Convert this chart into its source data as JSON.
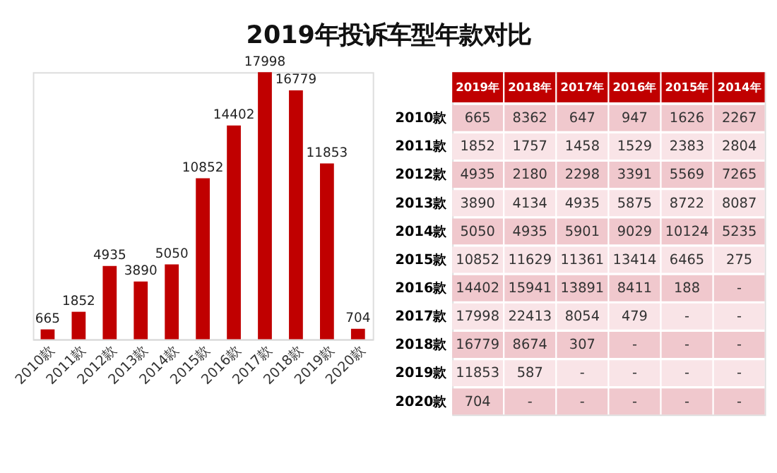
{
  "chart_data": [
    {
      "type": "bar",
      "title": "2019年投诉车型年款对比",
      "categories": [
        "2010款",
        "2011款",
        "2012款",
        "2013款",
        "2014款",
        "2015款",
        "2016款",
        "2017款",
        "2018款",
        "2019款",
        "2020款"
      ],
      "values": [
        665,
        1852,
        4935,
        3890,
        5050,
        10852,
        14402,
        17998,
        16779,
        11853,
        704
      ],
      "color": "#c00000",
      "data_labels": true,
      "grid": false,
      "legend": false
    },
    {
      "type": "heatmap",
      "categories": [
        "2019年",
        "2018年",
        "2017年",
        "2016年",
        "2015年",
        "2014年"
      ],
      "y_categories": [
        "2010款",
        "2011款",
        "2012款",
        "2013款",
        "2014款",
        "2015款",
        "2016款",
        "2017款",
        "2018款",
        "2019款",
        "2020款"
      ],
      "cells": [
        [
          665,
          8362,
          647,
          947,
          1626,
          2267
        ],
        [
          1852,
          1757,
          1458,
          1529,
          2383,
          2804
        ],
        [
          4935,
          2180,
          2298,
          3391,
          5569,
          7265
        ],
        [
          3890,
          4134,
          4935,
          5875,
          8722,
          8087
        ],
        [
          5050,
          4935,
          5901,
          9029,
          10124,
          5235
        ],
        [
          10852,
          11629,
          11361,
          13414,
          6465,
          275
        ],
        [
          14402,
          15941,
          13891,
          8411,
          188,
          null
        ],
        [
          17998,
          22413,
          8054,
          479,
          null,
          null
        ],
        [
          16779,
          8674,
          307,
          null,
          null,
          null
        ],
        [
          11853,
          587,
          null,
          null,
          null,
          null
        ],
        [
          704,
          null,
          null,
          null,
          null,
          null
        ]
      ],
      "cell_labels": [
        [
          "665",
          "8362",
          "647",
          "947",
          "1626",
          "2267"
        ],
        [
          "1852",
          "1757",
          "1458",
          "1529",
          "2383",
          "2804"
        ],
        [
          "4935",
          "2180",
          "2298",
          "3391",
          "5569",
          "7265"
        ],
        [
          "3890",
          "4134",
          "4935",
          "5875",
          "8722",
          "8087"
        ],
        [
          "5050",
          "4935",
          "5901",
          "9029",
          "10124",
          "5235"
        ],
        [
          "10852",
          "11629",
          "11361",
          "13414",
          "6465",
          "275"
        ],
        [
          "14402",
          "15941",
          "13891",
          "8411",
          "188",
          "-"
        ],
        [
          "17998",
          "22413",
          "8054",
          "479",
          "-",
          "-"
        ],
        [
          "16779",
          "8674",
          "307",
          "-",
          "-",
          "-"
        ],
        [
          "11853",
          "587",
          "-",
          "-",
          "-",
          "-"
        ],
        [
          "704",
          "-",
          "-",
          "-",
          "-",
          "-"
        ]
      ],
      "color": "#c00000",
      "colors": [
        "#f0c8cd",
        "#f9e4e7"
      ],
      "data_labels": true,
      "legend": false
    }
  ]
}
